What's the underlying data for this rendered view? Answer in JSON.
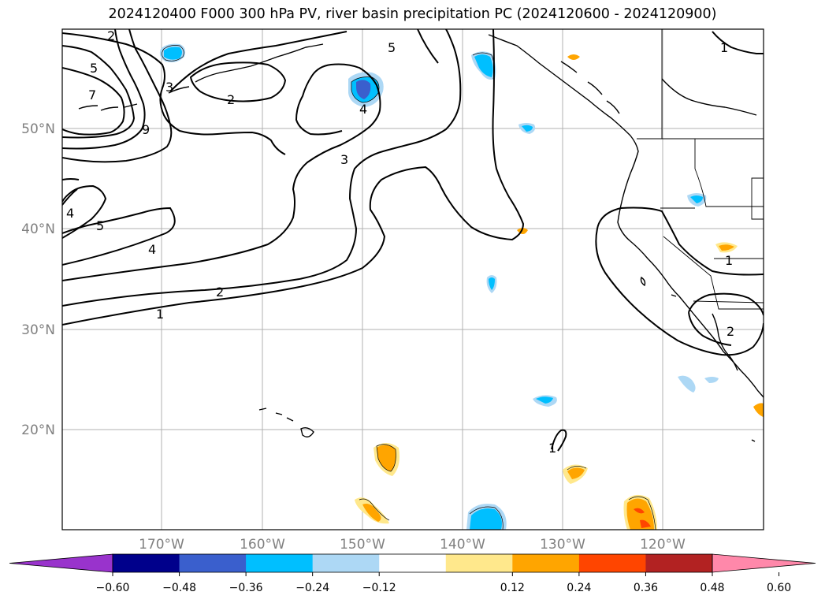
{
  "title": "2024120400 F000 300 hPa PV, river basin precipitation PC (2024120600 - 2024120900)",
  "axes": {
    "lat_labels": [
      "50°N",
      "40°N",
      "30°N",
      "20°N"
    ],
    "lon_labels": [
      "170°W",
      "160°W",
      "150°W",
      "140°W",
      "130°W",
      "120°W"
    ]
  },
  "pv_contour_labels": [
    "2",
    "5",
    "7",
    "9",
    "3",
    "2",
    "4",
    "5",
    "4",
    "3",
    "2",
    "1",
    "5",
    "4",
    "1",
    "1",
    "1",
    "2"
  ],
  "colorbar": {
    "ticks": [
      "−0.60",
      "−0.48",
      "−0.36",
      "−0.24",
      "−0.12",
      "0.12",
      "0.24",
      "0.36",
      "0.48",
      "0.60"
    ],
    "colors": [
      "#9933cc",
      "#00008b",
      "#3a5fcd",
      "#00bfff",
      "#add8f5",
      "#ffffff",
      "#ffe88c",
      "#ffa500",
      "#ff4500",
      "#b22222",
      "#ff88aa"
    ]
  },
  "colors": {
    "grid": "#b0b0b0",
    "contour": "#000000",
    "tick_label": "#808080"
  }
}
